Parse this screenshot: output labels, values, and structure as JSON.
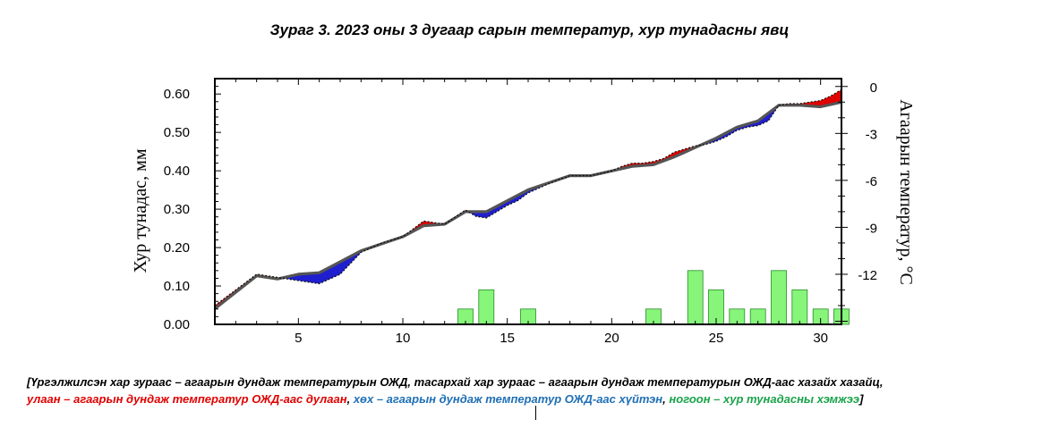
{
  "chart_data": {
    "type": "bar",
    "title": "Зураг 3. 2023 оны 3 дугаар сарын температур, хур тунадасны явц",
    "ylabel": "Хур тунадас, мм",
    "y2label": "Агаарын температур, °C",
    "ylim": [
      0,
      0.64
    ],
    "y2lim": [
      -15.2,
      0.5
    ],
    "xlim": [
      1,
      31
    ],
    "x_ticks": [
      5,
      10,
      15,
      20,
      25,
      30
    ],
    "y_ticks": [
      "0.00",
      "0.10",
      "0.20",
      "0.30",
      "0.40",
      "0.50",
      "0.60"
    ],
    "y2_ticks": [
      0,
      -3,
      -6,
      -9,
      -12
    ],
    "precipitation": {
      "x": [
        13,
        14,
        16,
        22,
        24,
        25,
        26,
        27,
        28,
        29,
        30,
        31
      ],
      "values": [
        0.04,
        0.09,
        0.04,
        0.04,
        0.14,
        0.09,
        0.04,
        0.04,
        0.14,
        0.09,
        0.04,
        0.04
      ],
      "color": "#86f57a"
    },
    "series": [
      {
        "name": "агаарын дундаж температурын ОЖД",
        "x": [
          1,
          3,
          4,
          5,
          6,
          8,
          10,
          11,
          12,
          13,
          14,
          16,
          18,
          19,
          20,
          21,
          22,
          23,
          24,
          25,
          26,
          27,
          28,
          29,
          30,
          31
        ],
        "values": [
          -14.2,
          -12.1,
          -12.3,
          -12.0,
          -11.9,
          -10.5,
          -9.6,
          -8.9,
          -8.8,
          -8.0,
          -8.0,
          -6.6,
          -5.7,
          -5.7,
          -5.4,
          -5.1,
          -5.0,
          -4.5,
          -3.9,
          -3.3,
          -2.6,
          -2.2,
          -1.2,
          -1.2,
          -1.3,
          -1.0
        ]
      },
      {
        "name": "агаарын дундаж температур",
        "x": [
          1,
          2,
          3,
          4,
          5,
          5.5,
          6,
          6.5,
          7,
          8,
          9,
          10,
          10.5,
          11,
          12,
          13,
          13.5,
          14,
          14.5,
          15,
          15.5,
          16,
          17,
          18,
          19,
          20,
          20.5,
          21,
          21.5,
          22,
          22.5,
          23,
          23.5,
          24,
          24.5,
          25,
          25.5,
          26,
          26.5,
          27,
          27.5,
          28,
          28.5,
          29,
          29.5,
          30,
          30.5,
          31
        ],
        "values": [
          -14.0,
          -13.0,
          -12.0,
          -12.2,
          -12.4,
          -12.5,
          -12.6,
          -12.3,
          -12.0,
          -10.6,
          -10.0,
          -9.6,
          -9.1,
          -8.6,
          -8.8,
          -7.9,
          -8.3,
          -8.4,
          -8.0,
          -7.6,
          -7.3,
          -6.8,
          -6.2,
          -5.7,
          -5.7,
          -5.4,
          -5.1,
          -4.9,
          -4.9,
          -4.8,
          -4.6,
          -4.2,
          -4.0,
          -3.8,
          -3.7,
          -3.5,
          -3.2,
          -2.8,
          -2.6,
          -2.5,
          -2.2,
          -1.2,
          -1.1,
          -1.1,
          -1.0,
          -0.9,
          -0.6,
          -0.2
        ]
      }
    ],
    "legend_position": "none",
    "grid": false
  },
  "caption": {
    "line1_black": "[Үргэлжилсэн хар зураас – агаарын дундаж температурын ОЖД, тасархай хар зураас – агаарын дундаж температурын ОЖД-аас хазайх хазайц,",
    "line2_red": "улаан – агаарын дундаж температур ОЖД-аас дулаан",
    "line2_sep1": ",",
    "line2_blue": "хөх – агаарын дундаж температур ОЖД-аас хүйтэн",
    "line2_sep2": ",",
    "line2_green": "ногоон – хур тунадасны хэмжээ",
    "line2_end": "]"
  },
  "colors": {
    "warm": "#e00000",
    "cold": "#1f1fcf",
    "normal_line": "#555555",
    "precip_fill": "#86f57a",
    "precip_stroke": "#2a8a2a"
  }
}
